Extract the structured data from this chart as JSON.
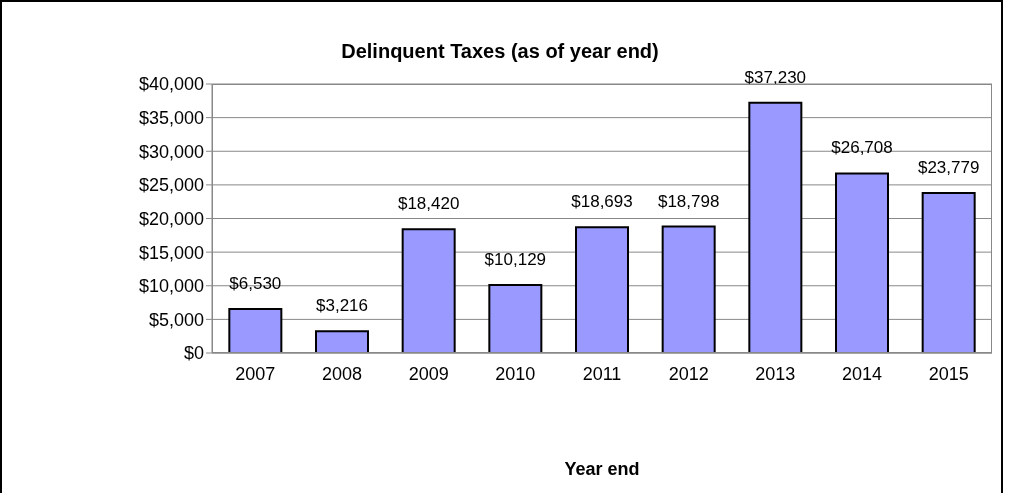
{
  "chart_data": {
    "type": "bar",
    "title": "Delinquent Taxes (as of year end)",
    "xlabel": "Year end",
    "categories": [
      "2007",
      "2008",
      "2009",
      "2010",
      "2011",
      "2012",
      "2013",
      "2014",
      "2015"
    ],
    "values": [
      6530,
      3216,
      18420,
      10129,
      18693,
      18798,
      37230,
      26708,
      23779
    ],
    "value_labels": [
      "$6,530",
      "$3,216",
      "$18,420",
      "$10,129",
      "$18,693",
      "$18,798",
      "$37,230",
      "$26,708",
      "$23,779"
    ],
    "color": "#9999ff",
    "ylim": [
      0,
      40000
    ],
    "yticks": [
      {
        "value": 0,
        "label": "$0"
      },
      {
        "value": 5000,
        "label": "$5,000"
      },
      {
        "value": 10000,
        "label": "$10,000"
      },
      {
        "value": 15000,
        "label": "$15,000"
      },
      {
        "value": 20000,
        "label": "$20,000"
      },
      {
        "value": 25000,
        "label": "$25,000"
      },
      {
        "value": 30000,
        "label": "$30,000"
      },
      {
        "value": 35000,
        "label": "$35,000"
      },
      {
        "value": 40000,
        "label": "$40,000"
      }
    ],
    "grid": "y"
  }
}
